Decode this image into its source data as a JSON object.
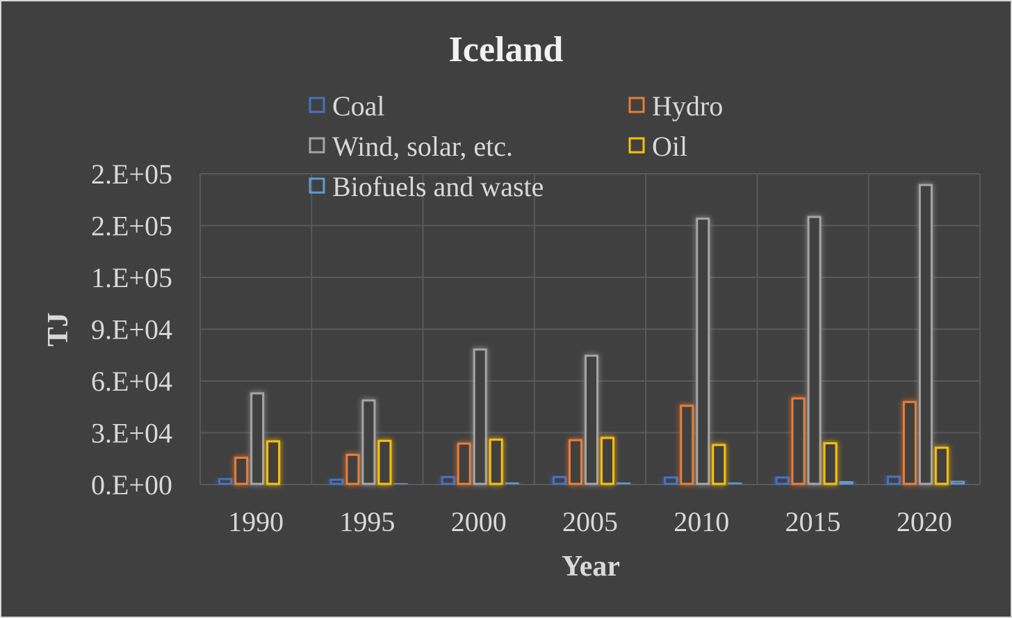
{
  "chart_data": {
    "type": "bar",
    "title": "Iceland",
    "xlabel": "Year",
    "ylabel": "TJ",
    "categories": [
      "1990",
      "1995",
      "2000",
      "2005",
      "2010",
      "2015",
      "2020"
    ],
    "ylim": [
      0,
      180000
    ],
    "yticks": [
      0,
      30000,
      60000,
      90000,
      120000,
      150000,
      180000
    ],
    "ytick_labels": [
      "0.E+00",
      "3.E+04",
      "6.E+04",
      "9.E+04",
      "1.E+05",
      "2.E+05",
      "2.E+05"
    ],
    "grid": true,
    "legend_position": "top",
    "series": [
      {
        "name": "Coal",
        "color": "#4472c4",
        "values": [
          3200,
          2800,
          4300,
          4300,
          4000,
          4000,
          4500
        ]
      },
      {
        "name": "Hydro",
        "color": "#ed7d31",
        "values": [
          15500,
          17200,
          23700,
          25700,
          45600,
          49900,
          47800
        ]
      },
      {
        "name": "Wind, solar, etc.",
        "color": "#a5a5a5",
        "values": [
          52800,
          48700,
          78200,
          74600,
          154000,
          155000,
          173500
        ]
      },
      {
        "name": "Oil",
        "color": "#ffc000",
        "values": [
          25000,
          25300,
          26000,
          27000,
          22900,
          23900,
          21300
        ]
      },
      {
        "name": "Biofuels and waste",
        "color": "#5b9bd5",
        "values": [
          0,
          700,
          1000,
          1000,
          1000,
          1600,
          1900
        ]
      }
    ]
  }
}
